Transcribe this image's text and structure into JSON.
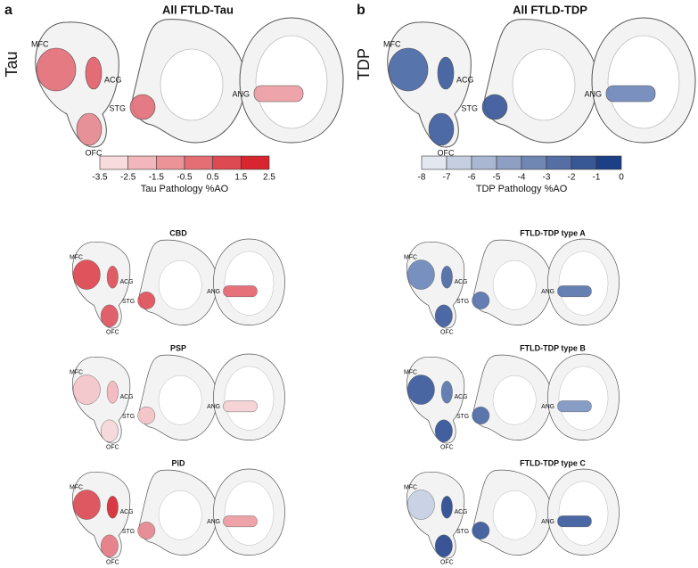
{
  "regions": [
    "MFC",
    "ACG",
    "STG",
    "OFC",
    "ANG"
  ],
  "panels": [
    {
      "letter": "a",
      "title": "All FTLD-Tau",
      "row_label": "Tau",
      "colorbar": {
        "ticks": [
          -3.5,
          -2.5,
          -1.5,
          -0.5,
          0.5,
          1.5,
          2.5
        ],
        "label": "Tau Pathology %AO"
      },
      "subtypes": [
        {
          "title": "CBD"
        },
        {
          "title": "PSP"
        },
        {
          "title": "PiD"
        }
      ]
    },
    {
      "letter": "b",
      "title": "All FTLD-TDP",
      "row_label": "TDP",
      "colorbar": {
        "ticks": [
          -8,
          -7,
          -6,
          -5,
          -4,
          -3,
          -2,
          -1,
          0
        ],
        "label": "TDP Pathology %AO"
      },
      "subtypes": [
        {
          "title": "FTLD-TDP type A"
        },
        {
          "title": "FTLD-TDP type B"
        },
        {
          "title": "FTLD-TDP type C"
        }
      ]
    }
  ]
}
